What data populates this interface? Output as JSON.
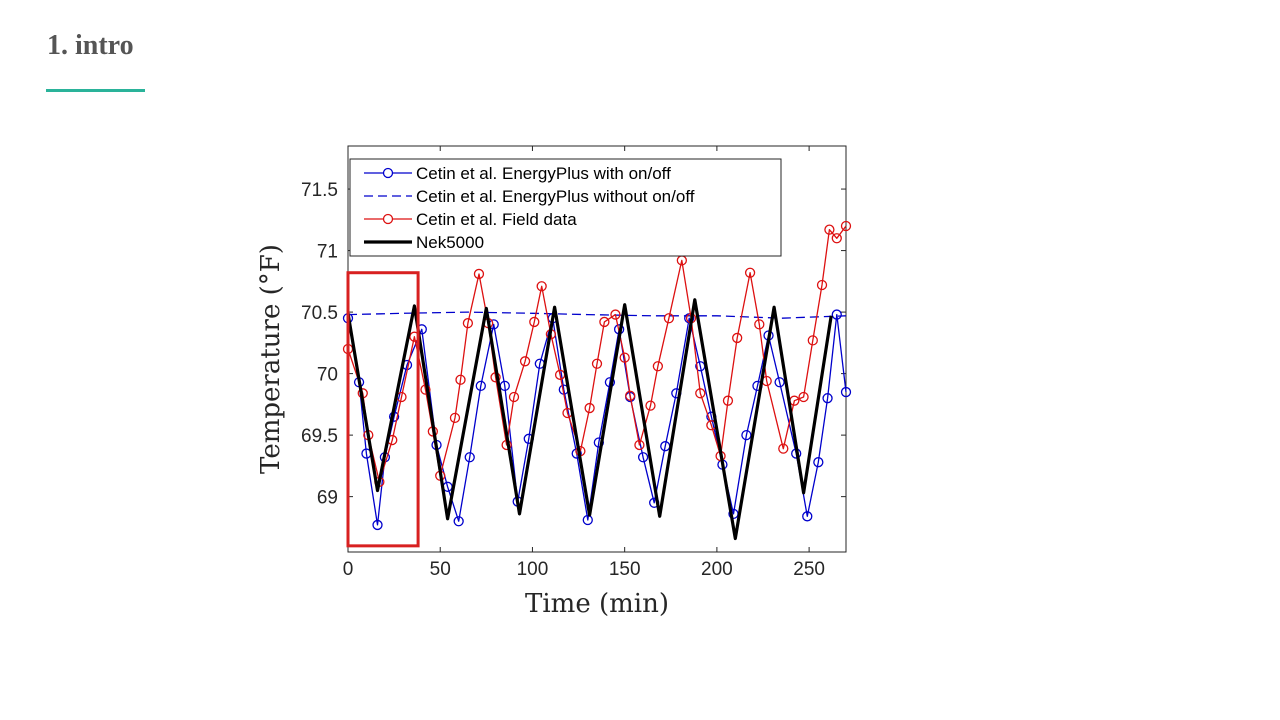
{
  "slide": {
    "title": "1. intro",
    "accent_color": "#2ab39a"
  },
  "chart_data": {
    "type": "line",
    "title": "",
    "xlabel": "Time (min)",
    "ylabel": "Temperature (°F)",
    "xlim": [
      0,
      270
    ],
    "ylim": [
      68.55,
      71.85
    ],
    "xticks": [
      0,
      50,
      100,
      150,
      200,
      250
    ],
    "yticks": [
      69,
      69.5,
      70,
      70.5,
      71,
      71.5
    ],
    "ytick_labels": [
      "69",
      "69.5",
      "70",
      "70.5",
      "71",
      "71.5"
    ],
    "grid": false,
    "legend_position": "top-left",
    "highlight_box": {
      "x": [
        0,
        38
      ],
      "y": [
        68.6,
        70.82
      ],
      "color": "#d82020"
    },
    "series": [
      {
        "name": "Cetin et al. EnergyPlus with on/off",
        "color": "#0000cc",
        "style": "solid-circle-markers",
        "x": [
          0,
          6,
          10,
          16,
          20,
          25,
          32,
          40,
          48,
          54,
          60,
          66,
          72,
          79,
          85,
          92,
          98,
          104,
          111,
          117,
          124,
          130,
          136,
          142,
          147,
          153,
          160,
          166,
          172,
          178,
          185,
          191,
          197,
          203,
          209,
          216,
          222,
          228,
          234,
          243,
          249,
          255,
          260,
          265,
          270
        ],
        "y": [
          70.45,
          69.93,
          69.35,
          68.77,
          69.32,
          69.65,
          70.07,
          70.36,
          69.42,
          69.08,
          68.8,
          69.32,
          69.9,
          70.4,
          69.9,
          68.96,
          69.47,
          70.08,
          70.45,
          69.87,
          69.35,
          68.81,
          69.44,
          69.93,
          70.36,
          69.81,
          69.32,
          68.95,
          69.41,
          69.84,
          70.45,
          70.06,
          69.65,
          69.26,
          68.86,
          69.5,
          69.9,
          70.31,
          69.93,
          69.35,
          68.84,
          69.28,
          69.8,
          70.48,
          69.85
        ]
      },
      {
        "name": "Cetin et al. EnergyPlus without on/off",
        "color": "#0000cc",
        "style": "dashed",
        "x": [
          0,
          30,
          65,
          100,
          130,
          165,
          200,
          235,
          270
        ],
        "y": [
          70.48,
          70.49,
          70.5,
          70.49,
          70.48,
          70.47,
          70.47,
          70.45,
          70.47
        ]
      },
      {
        "name": "Cetin et al. Field data",
        "color": "#dd1111",
        "style": "solid-circle-markers",
        "x": [
          0,
          8,
          11,
          17,
          24,
          29,
          36,
          42,
          46,
          50,
          58,
          61,
          65,
          71,
          76,
          80,
          86,
          90,
          96,
          101,
          105,
          110,
          115,
          119,
          126,
          131,
          135,
          139,
          145,
          150,
          153,
          158,
          164,
          168,
          174,
          181,
          186,
          191,
          197,
          202,
          206,
          211,
          218,
          223,
          227,
          236,
          242,
          247,
          252,
          257,
          261,
          265,
          270
        ],
        "y": [
          70.2,
          69.84,
          69.5,
          69.12,
          69.46,
          69.81,
          70.3,
          69.87,
          69.53,
          69.17,
          69.64,
          69.95,
          70.41,
          70.81,
          70.41,
          69.97,
          69.42,
          69.81,
          70.1,
          70.42,
          70.71,
          70.32,
          69.99,
          69.68,
          69.37,
          69.72,
          70.08,
          70.42,
          70.48,
          70.13,
          69.82,
          69.42,
          69.74,
          70.06,
          70.45,
          70.92,
          70.45,
          69.84,
          69.58,
          69.33,
          69.78,
          70.29,
          70.82,
          70.4,
          69.94,
          69.39,
          69.78,
          69.81,
          70.27,
          70.72,
          71.17,
          71.1,
          71.2
        ]
      },
      {
        "name": "Nek5000",
        "color": "#000000",
        "style": "solid-thick",
        "x": [
          0,
          16,
          36,
          54,
          75,
          93,
          112,
          131,
          150,
          169,
          188,
          210,
          231,
          247,
          262
        ],
        "y": [
          70.49,
          69.05,
          70.55,
          68.82,
          70.53,
          68.86,
          70.54,
          68.85,
          70.56,
          68.84,
          70.6,
          68.66,
          70.54,
          69.03,
          70.47
        ]
      }
    ]
  }
}
